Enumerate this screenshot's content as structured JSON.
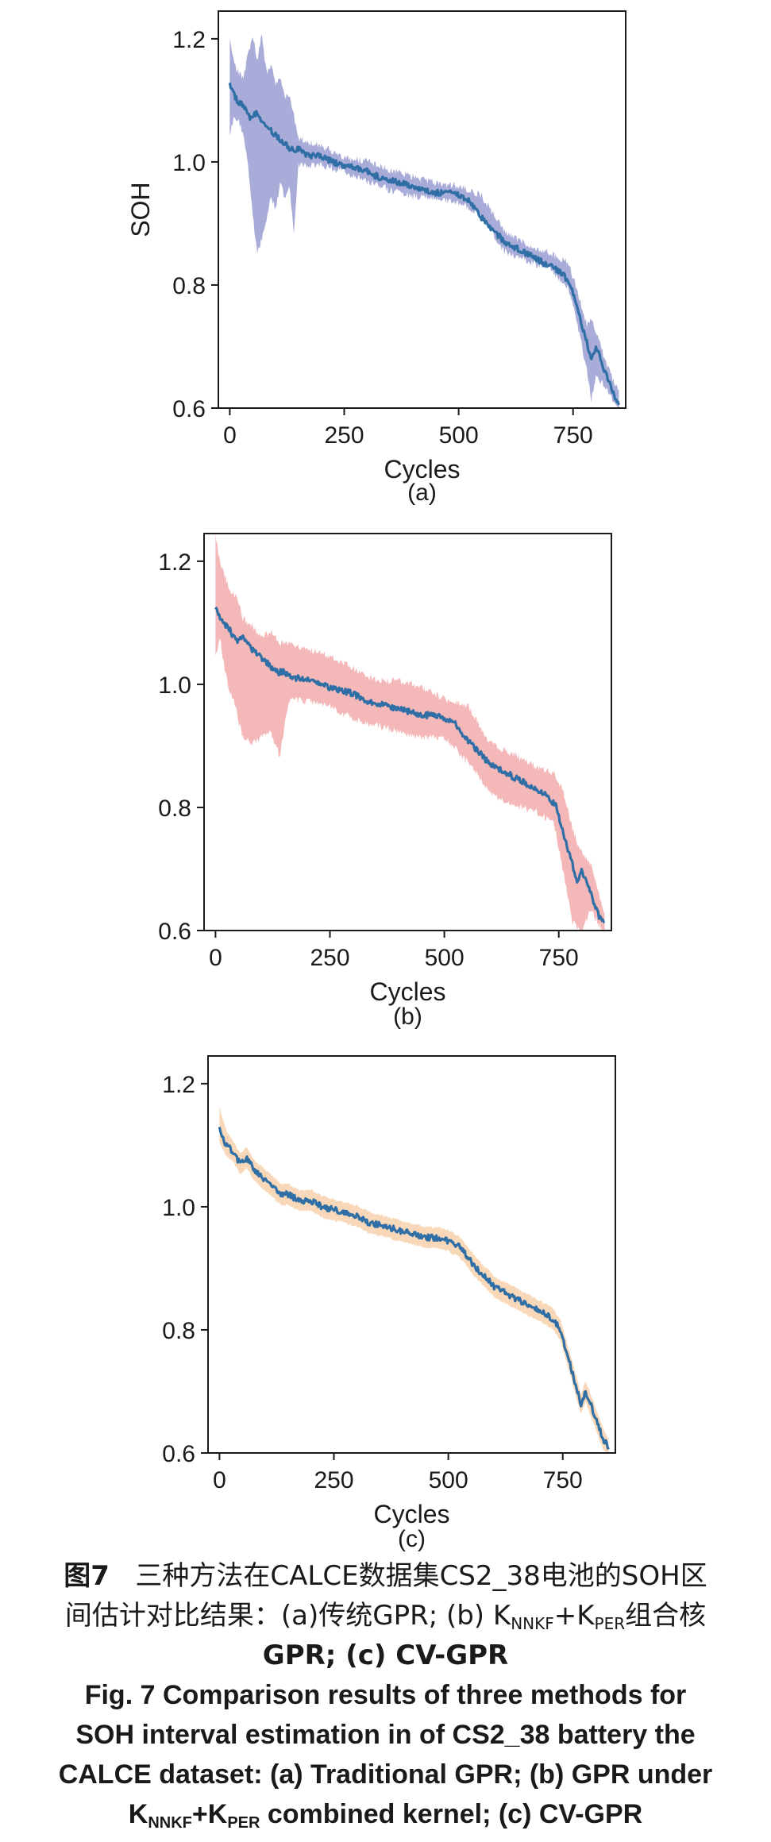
{
  "chart_data": [
    {
      "type": "line",
      "subtitle": "(a)",
      "xlabel": "Cycles",
      "ylabel": "SOH",
      "xlim": [
        -25,
        865
      ],
      "ylim": [
        0.6,
        1.245
      ],
      "xticks": [
        0,
        250,
        500,
        750
      ],
      "yticks": [
        0.6,
        0.8,
        1.0,
        1.2
      ],
      "band_color": "#a9acd8",
      "line_color": "#2f6fa6",
      "series": [
        {
          "role": "mean",
          "x": [
            0,
            15,
            30,
            45,
            60,
            75,
            90,
            105,
            120,
            135,
            150,
            175,
            200,
            225,
            250,
            275,
            300,
            325,
            350,
            375,
            400,
            425,
            450,
            475,
            500,
            525,
            550,
            575,
            600,
            625,
            650,
            675,
            700,
            725,
            745,
            760,
            775,
            790,
            800,
            810,
            820,
            830,
            840,
            850
          ],
          "y": [
            1.125,
            1.1,
            1.09,
            1.07,
            1.08,
            1.06,
            1.05,
            1.04,
            1.03,
            1.02,
            1.02,
            1.01,
            1.01,
            1.0,
            0.995,
            0.99,
            0.985,
            0.975,
            0.97,
            0.965,
            0.96,
            0.955,
            0.95,
            0.95,
            0.945,
            0.935,
            0.91,
            0.89,
            0.87,
            0.86,
            0.85,
            0.84,
            0.83,
            0.82,
            0.8,
            0.76,
            0.72,
            0.68,
            0.7,
            0.68,
            0.66,
            0.64,
            0.62,
            0.61
          ]
        },
        {
          "role": "interval_upper",
          "x": [
            0,
            10,
            20,
            30,
            40,
            50,
            60,
            70,
            80,
            90,
            100,
            110,
            120,
            130,
            140,
            150,
            200,
            250,
            300,
            350,
            400,
            450,
            500,
            550,
            600,
            650,
            700,
            740,
            760,
            780,
            790,
            800,
            820,
            850
          ],
          "y": [
            1.19,
            1.15,
            1.14,
            1.13,
            1.17,
            1.2,
            1.16,
            1.2,
            1.14,
            1.15,
            1.12,
            1.13,
            1.1,
            1.1,
            1.07,
            1.03,
            1.02,
            1.0,
            0.995,
            0.98,
            0.97,
            0.96,
            0.955,
            0.94,
            0.88,
            0.86,
            0.845,
            0.83,
            0.78,
            0.73,
            0.74,
            0.72,
            0.67,
            0.62
          ]
        },
        {
          "role": "interval_lower",
          "x": [
            0,
            10,
            20,
            30,
            40,
            50,
            60,
            70,
            80,
            90,
            100,
            110,
            120,
            130,
            140,
            150,
            200,
            250,
            300,
            350,
            400,
            450,
            500,
            550,
            600,
            650,
            700,
            740,
            760,
            780,
            790,
            800,
            820,
            850
          ],
          "y": [
            1.05,
            1.08,
            1.07,
            1.05,
            1.0,
            0.92,
            0.86,
            0.88,
            0.91,
            0.95,
            0.93,
            0.97,
            0.95,
            0.97,
            0.89,
            1.0,
            1.0,
            0.99,
            0.975,
            0.96,
            0.95,
            0.945,
            0.94,
            0.92,
            0.86,
            0.845,
            0.83,
            0.8,
            0.74,
            0.67,
            0.62,
            0.66,
            0.64,
            0.6
          ]
        }
      ]
    },
    {
      "type": "line",
      "subtitle": "(b)",
      "xlabel": "Cycles",
      "ylabel": "",
      "xlim": [
        -25,
        865
      ],
      "ylim": [
        0.6,
        1.245
      ],
      "xticks": [
        0,
        250,
        500,
        750
      ],
      "yticks": [
        0.6,
        0.8,
        1.0,
        1.2
      ],
      "band_color": "#f5b8b8",
      "line_color": "#2f6fa6",
      "series": [
        {
          "role": "mean",
          "x": [
            0,
            15,
            30,
            45,
            60,
            75,
            90,
            105,
            120,
            135,
            150,
            175,
            200,
            225,
            250,
            275,
            300,
            325,
            350,
            375,
            400,
            425,
            450,
            475,
            500,
            525,
            550,
            575,
            600,
            625,
            650,
            675,
            700,
            725,
            745,
            760,
            775,
            790,
            800,
            810,
            820,
            830,
            840,
            850
          ],
          "y": [
            1.125,
            1.1,
            1.09,
            1.07,
            1.08,
            1.06,
            1.05,
            1.04,
            1.03,
            1.02,
            1.02,
            1.01,
            1.01,
            1.0,
            0.995,
            0.99,
            0.985,
            0.975,
            0.97,
            0.965,
            0.96,
            0.955,
            0.95,
            0.95,
            0.945,
            0.935,
            0.91,
            0.89,
            0.87,
            0.86,
            0.85,
            0.84,
            0.83,
            0.82,
            0.8,
            0.76,
            0.72,
            0.68,
            0.7,
            0.68,
            0.66,
            0.64,
            0.62,
            0.61
          ]
        },
        {
          "role": "interval_upper",
          "x": [
            0,
            10,
            20,
            30,
            40,
            50,
            60,
            80,
            100,
            120,
            140,
            160,
            200,
            250,
            300,
            350,
            400,
            450,
            500,
            550,
            600,
            650,
            700,
            740,
            760,
            780,
            800,
            820,
            850
          ],
          "y": [
            1.24,
            1.19,
            1.17,
            1.15,
            1.14,
            1.13,
            1.1,
            1.09,
            1.07,
            1.08,
            1.06,
            1.06,
            1.05,
            1.04,
            1.02,
            1.0,
            1.0,
            0.99,
            0.97,
            0.96,
            0.9,
            0.88,
            0.86,
            0.85,
            0.82,
            0.76,
            0.72,
            0.7,
            0.62
          ]
        },
        {
          "role": "interval_lower",
          "x": [
            0,
            10,
            20,
            30,
            40,
            50,
            60,
            80,
            100,
            120,
            140,
            160,
            200,
            250,
            300,
            350,
            400,
            450,
            500,
            550,
            600,
            650,
            700,
            740,
            760,
            780,
            800,
            820,
            850
          ],
          "y": [
            1.05,
            1.08,
            1.03,
            1.0,
            0.98,
            0.95,
            0.92,
            0.91,
            0.92,
            0.93,
            0.89,
            0.98,
            0.98,
            0.97,
            0.95,
            0.94,
            0.93,
            0.92,
            0.92,
            0.88,
            0.83,
            0.81,
            0.8,
            0.78,
            0.7,
            0.62,
            0.6,
            0.64,
            0.6
          ]
        }
      ]
    },
    {
      "type": "line",
      "subtitle": "(c)",
      "xlabel": "Cycles",
      "ylabel": "",
      "xlim": [
        -25,
        865
      ],
      "ylim": [
        0.6,
        1.245
      ],
      "xticks": [
        0,
        250,
        500,
        750
      ],
      "yticks": [
        0.6,
        0.8,
        1.0,
        1.2
      ],
      "band_color": "#f8d8b8",
      "line_color": "#2f6fa6",
      "series": [
        {
          "role": "mean",
          "x": [
            0,
            15,
            30,
            45,
            60,
            75,
            90,
            105,
            120,
            135,
            150,
            175,
            200,
            225,
            250,
            275,
            300,
            325,
            350,
            375,
            400,
            425,
            450,
            475,
            500,
            525,
            550,
            575,
            600,
            625,
            650,
            675,
            700,
            725,
            745,
            760,
            775,
            790,
            800,
            810,
            820,
            830,
            840,
            850
          ],
          "y": [
            1.125,
            1.1,
            1.09,
            1.07,
            1.08,
            1.06,
            1.05,
            1.04,
            1.03,
            1.02,
            1.02,
            1.01,
            1.01,
            1.0,
            0.995,
            0.99,
            0.985,
            0.975,
            0.97,
            0.965,
            0.96,
            0.955,
            0.95,
            0.95,
            0.945,
            0.935,
            0.91,
            0.89,
            0.87,
            0.86,
            0.85,
            0.84,
            0.83,
            0.82,
            0.8,
            0.76,
            0.72,
            0.68,
            0.7,
            0.68,
            0.66,
            0.64,
            0.62,
            0.61
          ]
        },
        {
          "role": "interval_upper",
          "x": [
            0,
            15,
            30,
            45,
            60,
            75,
            90,
            105,
            120,
            135,
            150,
            175,
            200,
            225,
            250,
            275,
            300,
            325,
            350,
            375,
            400,
            425,
            450,
            475,
            500,
            525,
            550,
            575,
            600,
            625,
            650,
            675,
            700,
            725,
            745,
            760,
            775,
            790,
            800,
            810,
            820,
            830,
            840,
            850
          ],
          "y": [
            1.16,
            1.12,
            1.105,
            1.085,
            1.095,
            1.075,
            1.065,
            1.055,
            1.045,
            1.035,
            1.035,
            1.025,
            1.025,
            1.015,
            1.01,
            1.005,
            1.0,
            0.99,
            0.985,
            0.98,
            0.975,
            0.97,
            0.965,
            0.965,
            0.96,
            0.95,
            0.925,
            0.905,
            0.885,
            0.875,
            0.865,
            0.855,
            0.845,
            0.835,
            0.815,
            0.775,
            0.735,
            0.695,
            0.715,
            0.695,
            0.675,
            0.655,
            0.635,
            0.62
          ]
        },
        {
          "role": "interval_lower",
          "x": [
            0,
            15,
            30,
            45,
            60,
            75,
            90,
            105,
            120,
            135,
            150,
            175,
            200,
            225,
            250,
            275,
            300,
            325,
            350,
            375,
            400,
            425,
            450,
            475,
            500,
            525,
            550,
            575,
            600,
            625,
            650,
            675,
            700,
            725,
            745,
            760,
            775,
            790,
            800,
            810,
            820,
            830,
            840,
            850
          ],
          "y": [
            1.105,
            1.085,
            1.075,
            1.055,
            1.065,
            1.045,
            1.035,
            1.025,
            1.015,
            1.005,
            1.005,
            0.995,
            0.995,
            0.985,
            0.98,
            0.975,
            0.97,
            0.96,
            0.955,
            0.95,
            0.945,
            0.94,
            0.935,
            0.935,
            0.93,
            0.92,
            0.895,
            0.875,
            0.855,
            0.845,
            0.835,
            0.825,
            0.815,
            0.805,
            0.785,
            0.745,
            0.705,
            0.665,
            0.685,
            0.665,
            0.645,
            0.625,
            0.605,
            0.6
          ]
        }
      ]
    }
  ],
  "caption": {
    "cn_fig": "图7",
    "cn_line1": "三种方法在CALCE数据集CS2_38电池的SOH区",
    "cn_line2_a": "间估计对比结果：(a)传统GPR; (b) K",
    "cn_sub1": "NNKF",
    "cn_plus": "+K",
    "cn_sub2": "PER",
    "cn_line2_b": "组合核",
    "cn_line3": "GPR; (c) CV-GPR",
    "en_line1": "Fig. 7    Comparison results of three methods for",
    "en_line2": "SOH interval estimation in of CS2_38 battery the",
    "en_line3": "CALCE dataset: (a) Traditional GPR; (b) GPR under",
    "en_k1": "K",
    "en_sub1": "NNKF",
    "en_plus": "+K",
    "en_sub2": "PER",
    "en_line4_b": " combined kernel; (c) CV-GPR"
  }
}
